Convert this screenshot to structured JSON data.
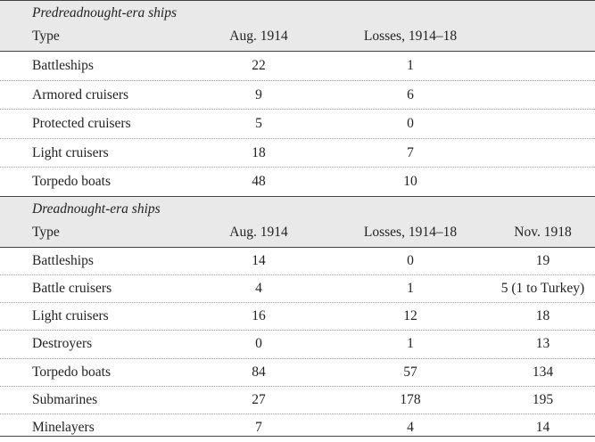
{
  "sections": [
    {
      "title": "Predreadnought-era ships",
      "columns": [
        "Type",
        "Aug. 1914",
        "Losses, 1914–18"
      ],
      "rows": [
        [
          "Battleships",
          "22",
          "1"
        ],
        [
          "Armored cruisers",
          "9",
          "6"
        ],
        [
          "Protected cruisers",
          "5",
          "0"
        ],
        [
          "Light cruisers",
          "18",
          "7"
        ],
        [
          "Torpedo boats",
          "48",
          "10"
        ]
      ]
    },
    {
      "title": "Dreadnought-era ships",
      "columns": [
        "Type",
        "Aug. 1914",
        "Losses, 1914–18",
        "Nov. 1918"
      ],
      "rows": [
        [
          "Battleships",
          "14",
          "0",
          "19"
        ],
        [
          "Battle cruisers",
          "4",
          "1",
          "5 (1 to Turkey)"
        ],
        [
          "Light cruisers",
          "16",
          "12",
          "18"
        ],
        [
          "Destroyers",
          "0",
          "1",
          "13"
        ],
        [
          "Torpedo boats",
          "84",
          "57",
          "134"
        ],
        [
          "Submarines",
          "27",
          "178",
          "195"
        ],
        [
          "Minelayers",
          "7",
          "4",
          "14"
        ]
      ]
    }
  ]
}
